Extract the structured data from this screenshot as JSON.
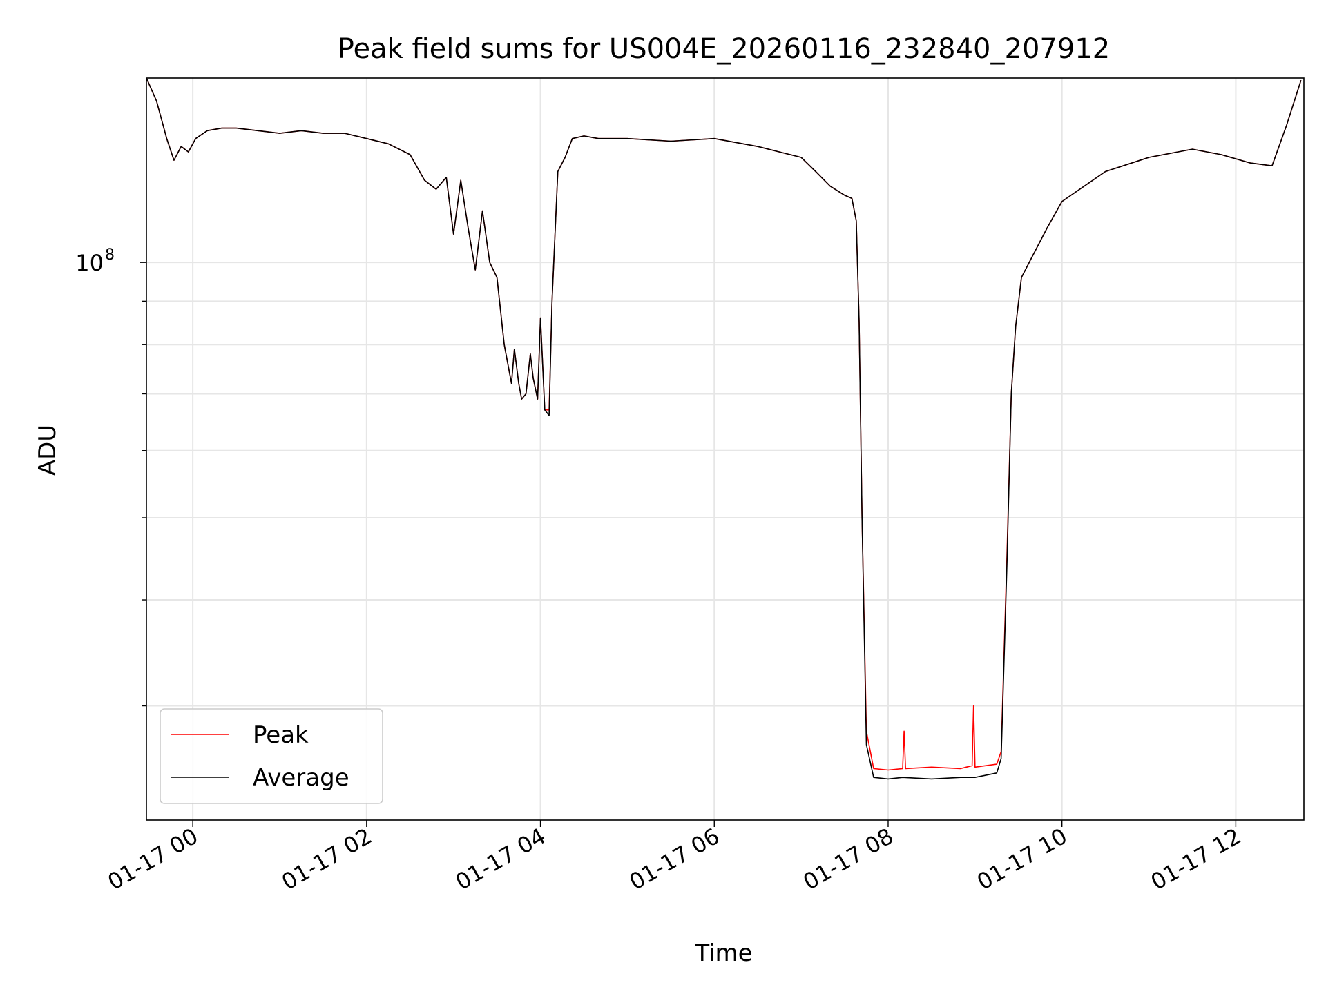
{
  "chart_data": {
    "type": "line",
    "title": "Peak field sums for US004E_20260116_232840_207912",
    "xlabel": "Time",
    "ylabel": "ADU",
    "yscale": "log",
    "grid": true,
    "legend_position": "lower-left",
    "x_range": [
      "2026-01-16 23:28",
      "2026-01-17 12:47"
    ],
    "y_range": [
      22000000,
      165000000
    ],
    "x_ticks": [
      "01-17 00",
      "01-17 02",
      "01-17 04",
      "01-17 06",
      "01-17 08",
      "01-17 10",
      "01-17 12"
    ],
    "y_ticks": [
      {
        "value": 100000000,
        "base": "10",
        "exp": "8"
      }
    ],
    "colors": {
      "peak": "#ff0000",
      "average": "#000000",
      "grid": "#e6e6e6"
    },
    "series": [
      {
        "name": "Peak",
        "x": [
          "2026-01-16 23:28",
          "2026-01-16 23:35",
          "2026-01-16 23:42",
          "2026-01-16 23:47",
          "2026-01-16 23:52",
          "2026-01-16 23:57",
          "2026-01-17 00:02",
          "2026-01-17 00:10",
          "2026-01-17 00:20",
          "2026-01-17 00:30",
          "2026-01-17 00:45",
          "2026-01-17 01:00",
          "2026-01-17 01:15",
          "2026-01-17 01:30",
          "2026-01-17 01:45",
          "2026-01-17 02:00",
          "2026-01-17 02:15",
          "2026-01-17 02:30",
          "2026-01-17 02:40",
          "2026-01-17 02:48",
          "2026-01-17 02:55",
          "2026-01-17 03:00",
          "2026-01-17 03:05",
          "2026-01-17 03:10",
          "2026-01-17 03:15",
          "2026-01-17 03:20",
          "2026-01-17 03:25",
          "2026-01-17 03:30",
          "2026-01-17 03:35",
          "2026-01-17 03:40",
          "2026-01-17 03:42",
          "2026-01-17 03:45",
          "2026-01-17 03:47",
          "2026-01-17 03:50",
          "2026-01-17 03:53",
          "2026-01-17 03:55",
          "2026-01-17 03:58",
          "2026-01-17 04:00",
          "2026-01-17 04:03",
          "2026-01-17 04:06",
          "2026-01-17 04:08",
          "2026-01-17 04:12",
          "2026-01-17 04:17",
          "2026-01-17 04:22",
          "2026-01-17 04:30",
          "2026-01-17 04:40",
          "2026-01-17 05:00",
          "2026-01-17 05:30",
          "2026-01-17 06:00",
          "2026-01-17 06:30",
          "2026-01-17 06:45",
          "2026-01-17 07:00",
          "2026-01-17 07:10",
          "2026-01-17 07:20",
          "2026-01-17 07:30",
          "2026-01-17 07:35",
          "2026-01-17 07:38",
          "2026-01-17 07:40",
          "2026-01-17 07:42",
          "2026-01-17 07:45",
          "2026-01-17 07:50",
          "2026-01-17 08:00",
          "2026-01-17 08:10",
          "2026-01-17 08:11",
          "2026-01-17 08:12",
          "2026-01-17 08:30",
          "2026-01-17 08:50",
          "2026-01-17 08:58",
          "2026-01-17 08:59",
          "2026-01-17 09:00",
          "2026-01-17 09:15",
          "2026-01-17 09:18",
          "2026-01-17 09:22",
          "2026-01-17 09:25",
          "2026-01-17 09:28",
          "2026-01-17 09:32",
          "2026-01-17 09:40",
          "2026-01-17 09:50",
          "2026-01-17 10:00",
          "2026-01-17 10:30",
          "2026-01-17 11:00",
          "2026-01-17 11:30",
          "2026-01-17 11:50",
          "2026-01-17 12:10",
          "2026-01-17 12:25",
          "2026-01-17 12:35",
          "2026-01-17 12:45"
        ],
        "y": [
          165000000,
          155000000,
          140000000,
          132000000,
          137000000,
          135000000,
          140000000,
          143000000,
          144000000,
          144000000,
          143000000,
          142000000,
          143000000,
          142000000,
          142000000,
          140000000,
          138000000,
          134000000,
          125000000,
          122000000,
          126000000,
          108000000,
          125000000,
          110000000,
          98000000,
          115000000,
          100000000,
          96000000,
          80000000,
          72000000,
          79000000,
          72000000,
          69000000,
          70000000,
          78000000,
          73000000,
          69000000,
          86000000,
          67000000,
          67000000,
          90000000,
          128000000,
          133000000,
          140000000,
          141000000,
          140000000,
          140000000,
          139000000,
          140000000,
          137000000,
          135000000,
          133000000,
          128000000,
          123000000,
          120000000,
          119000000,
          112000000,
          85000000,
          50000000,
          28000000,
          25300000,
          25200000,
          25300000,
          28000000,
          25300000,
          25400000,
          25300000,
          25500000,
          30000000,
          25400000,
          25600000,
          26500000,
          45000000,
          70000000,
          84000000,
          96000000,
          102000000,
          110000000,
          118000000,
          128000000,
          133000000,
          136000000,
          134000000,
          131000000,
          130000000,
          145000000,
          164000000
        ]
      },
      {
        "name": "Average",
        "x": [
          "2026-01-16 23:28",
          "2026-01-16 23:35",
          "2026-01-16 23:42",
          "2026-01-16 23:47",
          "2026-01-16 23:52",
          "2026-01-16 23:57",
          "2026-01-17 00:02",
          "2026-01-17 00:10",
          "2026-01-17 00:20",
          "2026-01-17 00:30",
          "2026-01-17 00:45",
          "2026-01-17 01:00",
          "2026-01-17 01:15",
          "2026-01-17 01:30",
          "2026-01-17 01:45",
          "2026-01-17 02:00",
          "2026-01-17 02:15",
          "2026-01-17 02:30",
          "2026-01-17 02:40",
          "2026-01-17 02:48",
          "2026-01-17 02:55",
          "2026-01-17 03:00",
          "2026-01-17 03:05",
          "2026-01-17 03:10",
          "2026-01-17 03:15",
          "2026-01-17 03:20",
          "2026-01-17 03:25",
          "2026-01-17 03:30",
          "2026-01-17 03:35",
          "2026-01-17 03:40",
          "2026-01-17 03:42",
          "2026-01-17 03:45",
          "2026-01-17 03:47",
          "2026-01-17 03:50",
          "2026-01-17 03:53",
          "2026-01-17 03:55",
          "2026-01-17 03:58",
          "2026-01-17 04:00",
          "2026-01-17 04:03",
          "2026-01-17 04:06",
          "2026-01-17 04:08",
          "2026-01-17 04:12",
          "2026-01-17 04:17",
          "2026-01-17 04:22",
          "2026-01-17 04:30",
          "2026-01-17 04:40",
          "2026-01-17 05:00",
          "2026-01-17 05:30",
          "2026-01-17 06:00",
          "2026-01-17 06:30",
          "2026-01-17 06:45",
          "2026-01-17 07:00",
          "2026-01-17 07:10",
          "2026-01-17 07:20",
          "2026-01-17 07:30",
          "2026-01-17 07:35",
          "2026-01-17 07:38",
          "2026-01-17 07:40",
          "2026-01-17 07:42",
          "2026-01-17 07:45",
          "2026-01-17 07:50",
          "2026-01-17 08:00",
          "2026-01-17 08:10",
          "2026-01-17 08:30",
          "2026-01-17 08:50",
          "2026-01-17 09:00",
          "2026-01-17 09:15",
          "2026-01-17 09:18",
          "2026-01-17 09:22",
          "2026-01-17 09:25",
          "2026-01-17 09:28",
          "2026-01-17 09:32",
          "2026-01-17 09:40",
          "2026-01-17 09:50",
          "2026-01-17 10:00",
          "2026-01-17 10:30",
          "2026-01-17 11:00",
          "2026-01-17 11:30",
          "2026-01-17 11:50",
          "2026-01-17 12:10",
          "2026-01-17 12:25",
          "2026-01-17 12:35",
          "2026-01-17 12:45"
        ],
        "y": [
          165000000,
          155000000,
          140000000,
          132000000,
          137000000,
          135000000,
          140000000,
          143000000,
          144000000,
          144000000,
          143000000,
          142000000,
          143000000,
          142000000,
          142000000,
          140000000,
          138000000,
          134000000,
          125000000,
          122000000,
          126000000,
          108000000,
          125000000,
          110000000,
          98000000,
          115000000,
          100000000,
          96000000,
          80000000,
          72000000,
          79000000,
          72000000,
          69000000,
          70000000,
          78000000,
          73000000,
          69000000,
          86000000,
          67000000,
          66000000,
          90000000,
          128000000,
          133000000,
          140000000,
          141000000,
          140000000,
          140000000,
          139000000,
          140000000,
          137000000,
          135000000,
          133000000,
          128000000,
          123000000,
          120000000,
          119000000,
          112000000,
          85000000,
          50000000,
          27000000,
          24700000,
          24600000,
          24700000,
          24600000,
          24700000,
          24700000,
          25000000,
          26000000,
          44000000,
          70000000,
          84000000,
          96000000,
          102000000,
          110000000,
          118000000,
          128000000,
          133000000,
          136000000,
          134000000,
          131000000,
          130000000,
          145000000,
          164000000
        ]
      }
    ]
  }
}
